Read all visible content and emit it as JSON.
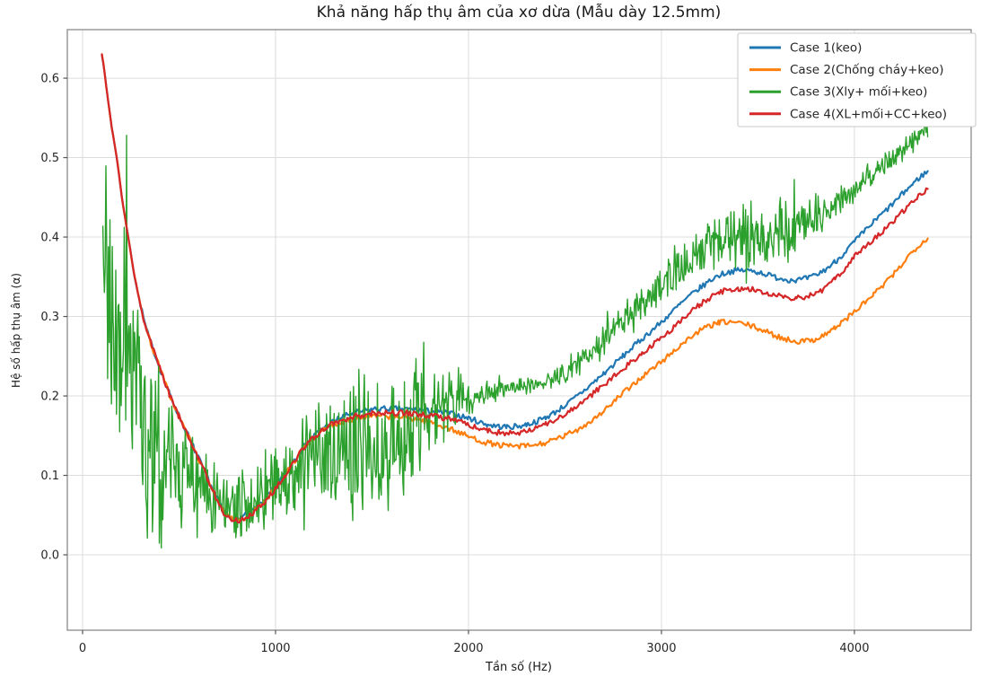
{
  "chart_data": {
    "type": "line",
    "title": "Khả năng hấp thụ âm của xơ dừa (Mẫu dày 12.5mm)",
    "xlabel": "Tần số (Hz)",
    "ylabel": "Hệ số hấp thụ âm (α)",
    "xlim": [
      -79,
      4605
    ],
    "ylim": [
      -0.0949,
      0.6611
    ],
    "xticks": [
      0,
      1000,
      2000,
      3000,
      4000
    ],
    "yticks": [
      0.0,
      0.1,
      0.2,
      0.3,
      0.4,
      0.5,
      0.6
    ],
    "grid": true,
    "legend_position": "upper right",
    "noise_seed": 7,
    "series": [
      {
        "name": "Case 1(keo)",
        "color": "#1f77b4",
        "width": 2.2,
        "jitter": 0.0035,
        "points": [
          [
            100,
            0.63
          ],
          [
            125,
            0.585
          ],
          [
            150,
            0.54
          ],
          [
            180,
            0.495
          ],
          [
            210,
            0.44
          ],
          [
            240,
            0.395
          ],
          [
            270,
            0.35
          ],
          [
            300,
            0.315
          ],
          [
            330,
            0.285
          ],
          [
            360,
            0.262
          ],
          [
            400,
            0.235
          ],
          [
            450,
            0.203
          ],
          [
            500,
            0.175
          ],
          [
            550,
            0.149
          ],
          [
            600,
            0.122
          ],
          [
            650,
            0.096
          ],
          [
            700,
            0.07
          ],
          [
            740,
            0.053
          ],
          [
            780,
            0.047
          ],
          [
            820,
            0.047
          ],
          [
            860,
            0.052
          ],
          [
            900,
            0.06
          ],
          [
            950,
            0.072
          ],
          [
            1000,
            0.086
          ],
          [
            1050,
            0.103
          ],
          [
            1100,
            0.121
          ],
          [
            1150,
            0.137
          ],
          [
            1200,
            0.15
          ],
          [
            1250,
            0.16
          ],
          [
            1300,
            0.168
          ],
          [
            1350,
            0.174
          ],
          [
            1400,
            0.178
          ],
          [
            1500,
            0.183
          ],
          [
            1600,
            0.184
          ],
          [
            1700,
            0.183
          ],
          [
            1800,
            0.181
          ],
          [
            1900,
            0.178
          ],
          [
            2000,
            0.172
          ],
          [
            2100,
            0.164
          ],
          [
            2200,
            0.161
          ],
          [
            2300,
            0.164
          ],
          [
            2400,
            0.173
          ],
          [
            2500,
            0.188
          ],
          [
            2600,
            0.207
          ],
          [
            2700,
            0.228
          ],
          [
            2800,
            0.25
          ],
          [
            2900,
            0.272
          ],
          [
            3000,
            0.293
          ],
          [
            3100,
            0.316
          ],
          [
            3200,
            0.336
          ],
          [
            3300,
            0.352
          ],
          [
            3400,
            0.358
          ],
          [
            3500,
            0.356
          ],
          [
            3600,
            0.349
          ],
          [
            3700,
            0.346
          ],
          [
            3800,
            0.352
          ],
          [
            3900,
            0.369
          ],
          [
            4000,
            0.394
          ],
          [
            4100,
            0.419
          ],
          [
            4200,
            0.442
          ],
          [
            4300,
            0.466
          ],
          [
            4380,
            0.482
          ]
        ]
      },
      {
        "name": "Case 2(Chống cháy+keo)",
        "color": "#ff7f0e",
        "width": 2.2,
        "jitter": 0.0035,
        "points": [
          [
            100,
            0.63
          ],
          [
            125,
            0.585
          ],
          [
            150,
            0.54
          ],
          [
            180,
            0.495
          ],
          [
            210,
            0.44
          ],
          [
            240,
            0.395
          ],
          [
            270,
            0.35
          ],
          [
            300,
            0.315
          ],
          [
            330,
            0.285
          ],
          [
            360,
            0.262
          ],
          [
            400,
            0.235
          ],
          [
            450,
            0.202
          ],
          [
            500,
            0.174
          ],
          [
            550,
            0.148
          ],
          [
            600,
            0.121
          ],
          [
            650,
            0.095
          ],
          [
            700,
            0.069
          ],
          [
            740,
            0.051
          ],
          [
            780,
            0.045
          ],
          [
            820,
            0.045
          ],
          [
            860,
            0.05
          ],
          [
            900,
            0.058
          ],
          [
            950,
            0.07
          ],
          [
            1000,
            0.084
          ],
          [
            1050,
            0.101
          ],
          [
            1100,
            0.119
          ],
          [
            1150,
            0.135
          ],
          [
            1200,
            0.148
          ],
          [
            1250,
            0.157
          ],
          [
            1300,
            0.163
          ],
          [
            1350,
            0.168
          ],
          [
            1400,
            0.171
          ],
          [
            1500,
            0.174
          ],
          [
            1600,
            0.174
          ],
          [
            1700,
            0.172
          ],
          [
            1800,
            0.167
          ],
          [
            1900,
            0.159
          ],
          [
            2000,
            0.149
          ],
          [
            2100,
            0.141
          ],
          [
            2200,
            0.137
          ],
          [
            2300,
            0.137
          ],
          [
            2400,
            0.141
          ],
          [
            2500,
            0.15
          ],
          [
            2600,
            0.163
          ],
          [
            2700,
            0.181
          ],
          [
            2800,
            0.203
          ],
          [
            2900,
            0.224
          ],
          [
            3000,
            0.243
          ],
          [
            3100,
            0.264
          ],
          [
            3200,
            0.282
          ],
          [
            3300,
            0.292
          ],
          [
            3400,
            0.292
          ],
          [
            3500,
            0.285
          ],
          [
            3600,
            0.275
          ],
          [
            3700,
            0.269
          ],
          [
            3800,
            0.272
          ],
          [
            3900,
            0.286
          ],
          [
            4000,
            0.306
          ],
          [
            4100,
            0.328
          ],
          [
            4200,
            0.352
          ],
          [
            4300,
            0.381
          ],
          [
            4380,
            0.398
          ]
        ]
      },
      {
        "name": "Case 3(Xly+ mối+keo)",
        "color": "#2ca02c",
        "width": 1.4,
        "points": [
          [
            105,
            0.4
          ],
          [
            130,
            0.35
          ],
          [
            160,
            0.3
          ],
          [
            200,
            0.255
          ],
          [
            250,
            0.215
          ],
          [
            300,
            0.185
          ],
          [
            350,
            0.161
          ],
          [
            400,
            0.142
          ],
          [
            450,
            0.127
          ],
          [
            500,
            0.113
          ],
          [
            550,
            0.101
          ],
          [
            600,
            0.091
          ],
          [
            650,
            0.082
          ],
          [
            700,
            0.075
          ],
          [
            750,
            0.069
          ],
          [
            800,
            0.066
          ],
          [
            850,
            0.066
          ],
          [
            900,
            0.069
          ],
          [
            950,
            0.076
          ],
          [
            1000,
            0.086
          ],
          [
            1050,
            0.097
          ],
          [
            1100,
            0.106
          ],
          [
            1200,
            0.117
          ],
          [
            1300,
            0.125
          ],
          [
            1400,
            0.131
          ],
          [
            1500,
            0.139
          ],
          [
            1600,
            0.149
          ],
          [
            1700,
            0.161
          ],
          [
            1800,
            0.175
          ],
          [
            1900,
            0.189
          ],
          [
            2000,
            0.199
          ],
          [
            2100,
            0.204
          ],
          [
            2200,
            0.209
          ],
          [
            2300,
            0.213
          ],
          [
            2400,
            0.219
          ],
          [
            2500,
            0.23
          ],
          [
            2600,
            0.245
          ],
          [
            2700,
            0.268
          ],
          [
            2800,
            0.296
          ],
          [
            2900,
            0.32
          ],
          [
            3000,
            0.342
          ],
          [
            3100,
            0.364
          ],
          [
            3200,
            0.384
          ],
          [
            3300,
            0.397
          ],
          [
            3400,
            0.401
          ],
          [
            3500,
            0.4
          ],
          [
            3600,
            0.401
          ],
          [
            3700,
            0.414
          ],
          [
            3800,
            0.428
          ],
          [
            3900,
            0.443
          ],
          [
            4000,
            0.461
          ],
          [
            4100,
            0.481
          ],
          [
            4200,
            0.501
          ],
          [
            4300,
            0.521
          ],
          [
            4380,
            0.535
          ]
        ],
        "noise_halfwidth": [
          [
            105,
            0.12
          ],
          [
            150,
            0.17
          ],
          [
            200,
            0.18
          ],
          [
            250,
            0.16
          ],
          [
            300,
            0.14
          ],
          [
            350,
            0.125
          ],
          [
            400,
            0.115
          ],
          [
            450,
            0.1
          ],
          [
            500,
            0.085
          ],
          [
            550,
            0.07
          ],
          [
            600,
            0.06
          ],
          [
            700,
            0.048
          ],
          [
            800,
            0.04
          ],
          [
            900,
            0.042
          ],
          [
            1000,
            0.055
          ],
          [
            1100,
            0.07
          ],
          [
            1200,
            0.085
          ],
          [
            1400,
            0.09
          ],
          [
            1600,
            0.085
          ],
          [
            1800,
            0.072
          ],
          [
            1900,
            0.055
          ],
          [
            1980,
            0.03
          ],
          [
            2060,
            0.014
          ],
          [
            2200,
            0.012
          ],
          [
            2400,
            0.012
          ],
          [
            2600,
            0.016
          ],
          [
            2800,
            0.02
          ],
          [
            3000,
            0.024
          ],
          [
            3100,
            0.028
          ],
          [
            3300,
            0.034
          ],
          [
            3500,
            0.042
          ],
          [
            3650,
            0.046
          ],
          [
            3800,
            0.032
          ],
          [
            3900,
            0.02
          ],
          [
            4000,
            0.017
          ],
          [
            4200,
            0.016
          ],
          [
            4380,
            0.014
          ]
        ]
      },
      {
        "name": "Case 4(XL+mối+CC+keo)",
        "color": "#d62728",
        "width": 2.2,
        "jitter": 0.0035,
        "points": [
          [
            100,
            0.63
          ],
          [
            125,
            0.585
          ],
          [
            150,
            0.54
          ],
          [
            180,
            0.495
          ],
          [
            210,
            0.44
          ],
          [
            240,
            0.395
          ],
          [
            270,
            0.35
          ],
          [
            300,
            0.315
          ],
          [
            330,
            0.285
          ],
          [
            360,
            0.262
          ],
          [
            400,
            0.235
          ],
          [
            450,
            0.202
          ],
          [
            500,
            0.174
          ],
          [
            550,
            0.148
          ],
          [
            600,
            0.121
          ],
          [
            650,
            0.095
          ],
          [
            700,
            0.068
          ],
          [
            740,
            0.05
          ],
          [
            780,
            0.044
          ],
          [
            820,
            0.044
          ],
          [
            860,
            0.049
          ],
          [
            900,
            0.057
          ],
          [
            950,
            0.069
          ],
          [
            1000,
            0.083
          ],
          [
            1050,
            0.1
          ],
          [
            1100,
            0.119
          ],
          [
            1150,
            0.135
          ],
          [
            1200,
            0.149
          ],
          [
            1250,
            0.158
          ],
          [
            1300,
            0.165
          ],
          [
            1350,
            0.17
          ],
          [
            1400,
            0.174
          ],
          [
            1500,
            0.178
          ],
          [
            1600,
            0.179
          ],
          [
            1700,
            0.178
          ],
          [
            1800,
            0.175
          ],
          [
            1900,
            0.171
          ],
          [
            2000,
            0.164
          ],
          [
            2100,
            0.156
          ],
          [
            2200,
            0.153
          ],
          [
            2300,
            0.156
          ],
          [
            2400,
            0.164
          ],
          [
            2500,
            0.177
          ],
          [
            2600,
            0.194
          ],
          [
            2700,
            0.214
          ],
          [
            2800,
            0.234
          ],
          [
            2900,
            0.254
          ],
          [
            3000,
            0.273
          ],
          [
            3100,
            0.295
          ],
          [
            3200,
            0.315
          ],
          [
            3300,
            0.33
          ],
          [
            3400,
            0.335
          ],
          [
            3500,
            0.333
          ],
          [
            3600,
            0.326
          ],
          [
            3700,
            0.323
          ],
          [
            3800,
            0.329
          ],
          [
            3900,
            0.347
          ],
          [
            4000,
            0.375
          ],
          [
            4100,
            0.398
          ],
          [
            4200,
            0.419
          ],
          [
            4300,
            0.444
          ],
          [
            4380,
            0.459
          ]
        ]
      }
    ]
  },
  "style_colors": {
    "grid": "#dcdcdc",
    "spine": "#8a8a8a",
    "tick": "#555555",
    "legend_border": "#c8c8c8",
    "legend_bg": "#ffffff"
  }
}
